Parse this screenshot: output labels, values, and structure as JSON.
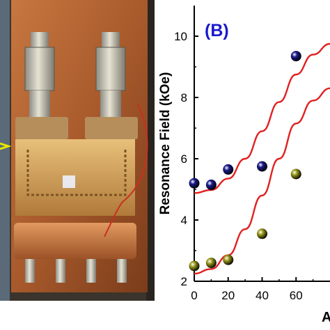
{
  "photo": {
    "description_icon": "waveguide-device-photo",
    "arrow_color": "#e6e600"
  },
  "chart_data": {
    "type": "scatter",
    "panel_label": "(B)",
    "ylabel": "Resonance Field (kOe)",
    "xlabel_visible": "A",
    "xlim": [
      0,
      80
    ],
    "ylim": [
      2,
      11
    ],
    "x_ticks": [
      "0",
      "20",
      "40",
      "60"
    ],
    "y_ticks": [
      "2",
      "4",
      "6",
      "8",
      "10"
    ],
    "series": [
      {
        "color": "#1a1a8c",
        "x": [
          0,
          10,
          20,
          40,
          60
        ],
        "y": [
          5.2,
          5.15,
          5.65,
          5.75,
          9.35
        ],
        "fit": {
          "x": [
            0,
            10,
            20,
            30,
            40,
            50,
            60,
            70,
            80
          ],
          "y": [
            4.88,
            4.98,
            5.35,
            6.0,
            6.9,
            7.85,
            8.75,
            9.4,
            9.75
          ]
        }
      },
      {
        "color": "#9a9a1a",
        "x": [
          0,
          10,
          20,
          40,
          60
        ],
        "y": [
          2.5,
          2.6,
          2.7,
          3.55,
          5.5
        ],
        "fit": {
          "x": [
            0,
            10,
            20,
            30,
            40,
            50,
            60,
            70,
            80
          ],
          "y": [
            2.25,
            2.4,
            2.85,
            3.7,
            4.8,
            6.0,
            7.15,
            7.9,
            8.3
          ]
        }
      }
    ],
    "fit_color": "#e02020",
    "axis_color": "#000000",
    "label_color": "#1a1acc"
  }
}
